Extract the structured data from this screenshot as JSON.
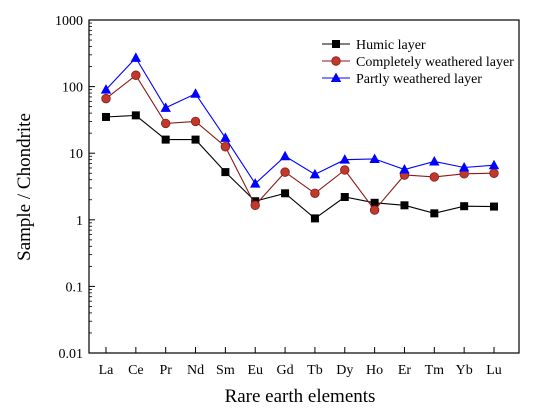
{
  "chart_data": {
    "type": "line",
    "title": "",
    "xlabel": "Rare earth elements",
    "ylabel": "Sample / Chondrite",
    "yscale": "log",
    "ylim": [
      0.01,
      1000
    ],
    "yticks": [
      "0.01",
      "0.1",
      "1",
      "10",
      "100",
      "1000"
    ],
    "categories": [
      "La",
      "Ce",
      "Pr",
      "Nd",
      "Sm",
      "Eu",
      "Gd",
      "Tb",
      "Dy",
      "Ho",
      "Er",
      "Tm",
      "Yb",
      "Lu"
    ],
    "legend_position": "top-right",
    "grid": false,
    "series": [
      {
        "name": "Humic layer",
        "marker": "square",
        "line_color": "#000000",
        "marker_color": "#000000",
        "values": [
          35,
          37,
          16,
          16,
          5.2,
          1.9,
          2.5,
          1.05,
          2.2,
          1.8,
          1.65,
          1.25,
          1.6,
          1.58
        ]
      },
      {
        "name": "Completely weathered layer",
        "marker": "circle",
        "line_color": "#8b1a1a",
        "marker_color": "#c0392b",
        "values": [
          66,
          148,
          28,
          30,
          12.5,
          1.65,
          5.2,
          2.5,
          5.6,
          1.4,
          4.7,
          4.4,
          4.9,
          5.0
        ]
      },
      {
        "name": "Partly weathered layer",
        "marker": "triangle",
        "line_color": "#0000ff",
        "marker_color": "#0000ff",
        "values": [
          90,
          270,
          48,
          78,
          17,
          3.5,
          9,
          4.8,
          8,
          8.2,
          5.7,
          7.5,
          6.1,
          6.6
        ]
      }
    ]
  }
}
